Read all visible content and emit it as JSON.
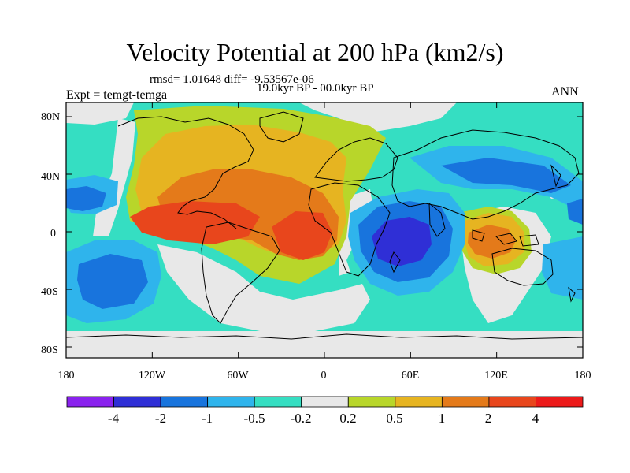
{
  "title": "Velocity Potential at 200 hPa (km2/s)",
  "stats_line": "rmsd= 1.01648 diff= -9.53567e-06",
  "period": "19.0kyr BP - 00.0kyr BP",
  "experiment": "Expt = temgt-temga",
  "season": "ANN",
  "lat_ticks": [
    "80N",
    "40N",
    "0",
    "40S",
    "80S"
  ],
  "lon_ticks": [
    "180",
    "120W",
    "60W",
    "0",
    "60E",
    "120E",
    "180"
  ],
  "colorbar": {
    "labels": [
      "-4",
      "-2",
      "-1",
      "-0.5",
      "-0.2",
      "0.2",
      "0.5",
      "1",
      "2",
      "4"
    ],
    "colors": [
      "#8a22ee",
      "#2f2fd6",
      "#1874dd",
      "#2fb4ec",
      "#35dec2",
      "#e8e8e8",
      "#b8d62a",
      "#e6b421",
      "#e47a1a",
      "#e8461c",
      "#ec1a1a"
    ]
  },
  "palette": {
    "neg4": "#2f2fd6",
    "neg2": "#1874dd",
    "neg1": "#2fb4ec",
    "neg05": "#35dec2",
    "neutral": "#e8e8e8",
    "pos02": "#b8d62a",
    "pos05": "#e6b421",
    "pos1": "#e47a1a",
    "pos2": "#e8461c"
  }
}
